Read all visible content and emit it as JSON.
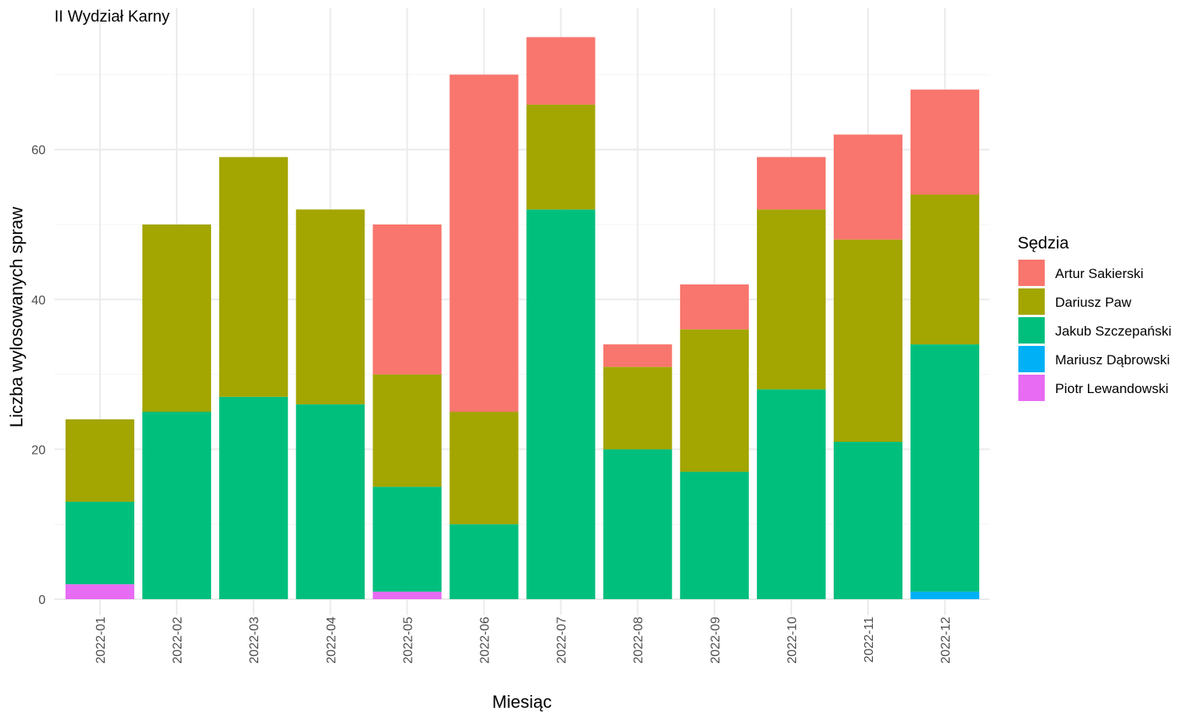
{
  "chart_data": {
    "type": "bar",
    "stacked": true,
    "title": "II Wydział Karny",
    "xlabel": "Miesiąc",
    "ylabel": "Liczba wylosowanych spraw",
    "ylim": [
      0,
      76
    ],
    "yticks": [
      0,
      20,
      40,
      60
    ],
    "grid": true,
    "legend_title": "Sędzia",
    "legend_position": "right",
    "categories": [
      "2022-01",
      "2022-02",
      "2022-03",
      "2022-04",
      "2022-05",
      "2022-06",
      "2022-07",
      "2022-08",
      "2022-09",
      "2022-10",
      "2022-11",
      "2022-12"
    ],
    "series": [
      {
        "name": "Artur Sakierski",
        "color": "#F8766D",
        "values": [
          0,
          0,
          0,
          0,
          20,
          45,
          9,
          3,
          6,
          7,
          14,
          14
        ]
      },
      {
        "name": "Dariusz Paw",
        "color": "#A3A500",
        "values": [
          11,
          25,
          32,
          26,
          15,
          15,
          14,
          11,
          19,
          24,
          27,
          20
        ]
      },
      {
        "name": "Jakub Szczepański",
        "color": "#00BF7D",
        "values": [
          11,
          25,
          27,
          26,
          14,
          10,
          52,
          20,
          17,
          28,
          21,
          33
        ]
      },
      {
        "name": "Mariusz Dąbrowski",
        "color": "#00B0F6",
        "values": [
          0,
          0,
          0,
          0,
          0,
          0,
          0,
          0,
          0,
          0,
          0,
          1
        ]
      },
      {
        "name": "Piotr Lewandowski",
        "color": "#E76BF3",
        "values": [
          2,
          0,
          0,
          0,
          1,
          0,
          0,
          0,
          0,
          0,
          0,
          0
        ]
      }
    ]
  }
}
